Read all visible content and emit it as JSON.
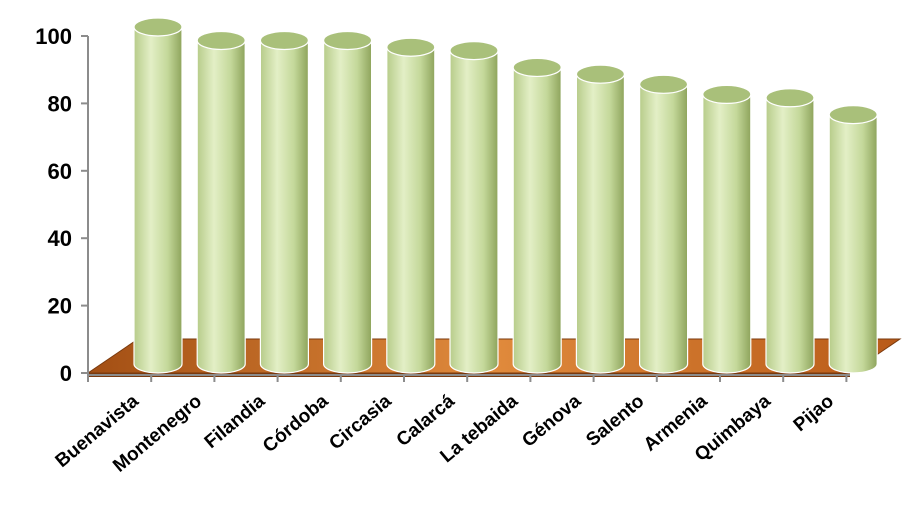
{
  "chart_data": {
    "type": "bar",
    "style": "3d-cylinder",
    "title": "",
    "xlabel": "",
    "ylabel": "",
    "ylim": [
      0,
      100
    ],
    "yticks": [
      "0",
      "20",
      "40",
      "60",
      "80",
      "100"
    ],
    "grid": false,
    "legend": "none",
    "categories": [
      "Buenavista",
      "Montenegro",
      "Filandia",
      "Córdoba",
      "Circasia",
      "Calarcá",
      "La tebaida",
      "Génova",
      "Salento",
      "Armenia",
      "Quimbaya",
      "Pijao"
    ],
    "series": [
      {
        "values": [
          100,
          96,
          96,
          96,
          94,
          93,
          88,
          86,
          83,
          80,
          79,
          74
        ]
      }
    ],
    "colors": {
      "cylinder_light": "#e3efc6",
      "cylinder_mid": "#c4d89a",
      "cylinder_dark": "#8ea45c",
      "cylinder_top": "#a9c07a",
      "floor_front": "#7a3a0e",
      "floor_top_light": "#e08a3c",
      "floor_top_dark": "#a34f14",
      "axis": "#8c8c8c"
    }
  }
}
